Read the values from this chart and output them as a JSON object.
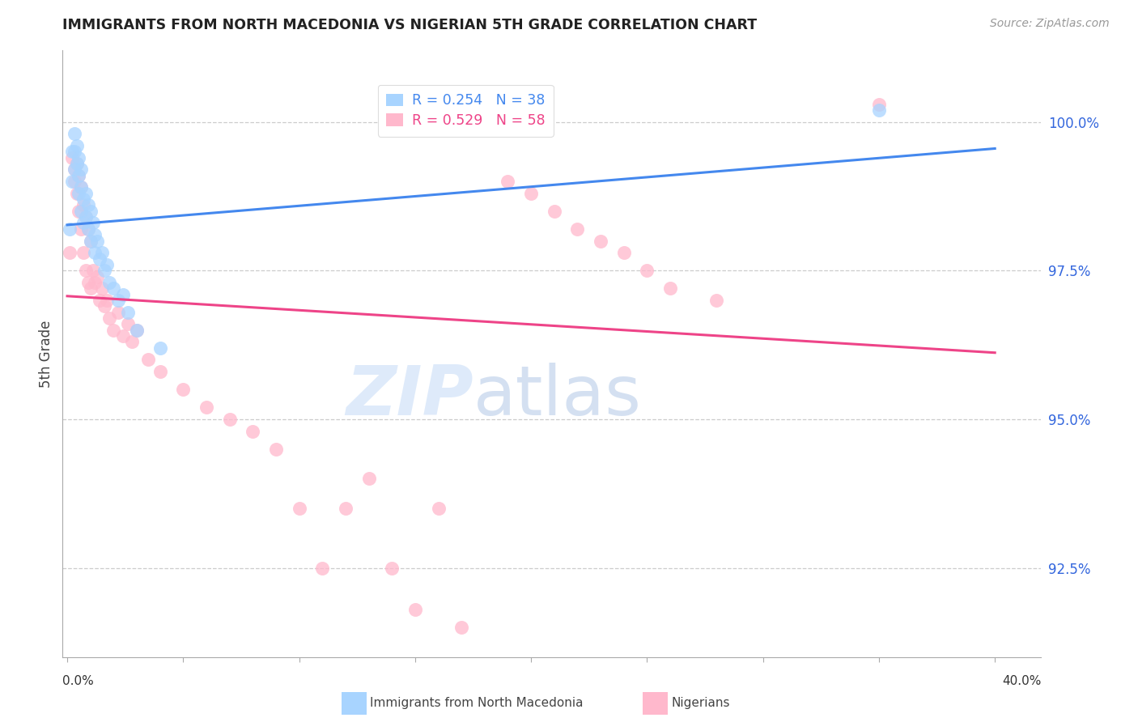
{
  "title": "IMMIGRANTS FROM NORTH MACEDONIA VS NIGERIAN 5TH GRADE CORRELATION CHART",
  "source": "Source: ZipAtlas.com",
  "ylabel": "5th Grade",
  "ymin": 91.0,
  "ymax": 101.2,
  "xmin": -0.002,
  "xmax": 0.42,
  "legend_blue_r": "R = 0.254",
  "legend_blue_n": "N = 38",
  "legend_pink_r": "R = 0.529",
  "legend_pink_n": "N = 58",
  "blue_color": "#a8d4ff",
  "pink_color": "#ffb8cc",
  "blue_line_color": "#4488ee",
  "pink_line_color": "#ee4488",
  "watermark_zip": "ZIP",
  "watermark_atlas": "atlas",
  "blue_x": [
    0.001,
    0.002,
    0.002,
    0.003,
    0.003,
    0.003,
    0.004,
    0.004,
    0.005,
    0.005,
    0.005,
    0.006,
    0.006,
    0.006,
    0.007,
    0.007,
    0.008,
    0.008,
    0.009,
    0.009,
    0.01,
    0.01,
    0.011,
    0.012,
    0.012,
    0.013,
    0.014,
    0.015,
    0.016,
    0.017,
    0.018,
    0.02,
    0.022,
    0.024,
    0.026,
    0.03,
    0.04,
    0.35
  ],
  "blue_y": [
    98.2,
    99.5,
    99.0,
    99.8,
    99.5,
    99.2,
    99.6,
    99.3,
    99.4,
    99.1,
    98.8,
    99.2,
    98.9,
    98.5,
    98.7,
    98.3,
    98.8,
    98.4,
    98.6,
    98.2,
    98.5,
    98.0,
    98.3,
    98.1,
    97.8,
    98.0,
    97.7,
    97.8,
    97.5,
    97.6,
    97.3,
    97.2,
    97.0,
    97.1,
    96.8,
    96.5,
    96.2,
    100.2
  ],
  "pink_x": [
    0.001,
    0.002,
    0.003,
    0.003,
    0.004,
    0.004,
    0.005,
    0.005,
    0.006,
    0.006,
    0.007,
    0.007,
    0.008,
    0.008,
    0.009,
    0.009,
    0.01,
    0.01,
    0.011,
    0.012,
    0.013,
    0.014,
    0.015,
    0.016,
    0.017,
    0.018,
    0.02,
    0.022,
    0.024,
    0.026,
    0.028,
    0.03,
    0.035,
    0.04,
    0.05,
    0.06,
    0.07,
    0.08,
    0.09,
    0.1,
    0.11,
    0.12,
    0.13,
    0.14,
    0.15,
    0.16,
    0.17,
    0.18,
    0.19,
    0.2,
    0.21,
    0.22,
    0.23,
    0.24,
    0.25,
    0.26,
    0.28,
    0.35
  ],
  "pink_y": [
    97.8,
    99.4,
    99.2,
    99.0,
    99.3,
    98.8,
    99.1,
    98.5,
    98.9,
    98.2,
    98.6,
    97.8,
    98.4,
    97.5,
    98.2,
    97.3,
    98.0,
    97.2,
    97.5,
    97.3,
    97.4,
    97.0,
    97.2,
    96.9,
    97.0,
    96.7,
    96.5,
    96.8,
    96.4,
    96.6,
    96.3,
    96.5,
    96.0,
    95.8,
    95.5,
    95.2,
    95.0,
    94.8,
    94.5,
    93.5,
    92.5,
    93.5,
    94.0,
    92.5,
    91.8,
    93.5,
    91.5,
    100.2,
    99.0,
    98.8,
    98.5,
    98.2,
    98.0,
    97.8,
    97.5,
    97.2,
    97.0,
    100.3
  ],
  "ytick_positions": [
    92.5,
    95.0,
    97.5,
    100.0
  ],
  "xtick_positions": [
    0.0,
    0.05,
    0.1,
    0.15,
    0.2,
    0.25,
    0.3,
    0.35,
    0.4
  ]
}
